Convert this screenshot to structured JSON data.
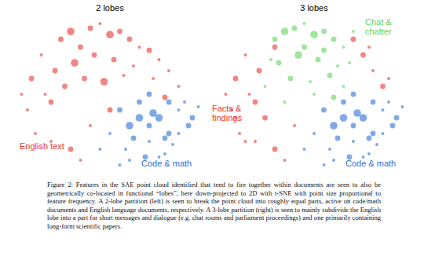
{
  "chart_data": [
    {
      "type": "scatter",
      "title": "2 lobes",
      "xlim": [
        -50,
        50
      ],
      "ylim": [
        -50,
        50
      ],
      "tick_labels": false,
      "series": [
        {
          "name": "English text",
          "color": "#e8342e",
          "x": [
            -40,
            -35,
            -30,
            -42,
            -25,
            -20,
            -15,
            -38,
            -10,
            -5,
            0,
            5,
            10,
            15,
            20,
            25,
            30,
            -28,
            -18,
            -8,
            2,
            12,
            22,
            -33,
            -23,
            -13,
            -3,
            7,
            -45,
            -30,
            -20,
            -10,
            0,
            -15,
            35,
            28
          ],
          "y": [
            10,
            25,
            -5,
            -10,
            35,
            40,
            30,
            -25,
            42,
            45,
            38,
            40,
            35,
            30,
            28,
            22,
            15,
            15,
            20,
            25,
            22,
            18,
            10,
            0,
            5,
            10,
            8,
            12,
            0,
            -30,
            -35,
            -20,
            -10,
            -42,
            5,
            -2
          ],
          "size": [
            2,
            1,
            2,
            1,
            2,
            3,
            2,
            1,
            2,
            1,
            3,
            2,
            2,
            1,
            2,
            1,
            1,
            2,
            3,
            2,
            2,
            1,
            1,
            1,
            2,
            2,
            3,
            1,
            1,
            1,
            2,
            1,
            2,
            1,
            1,
            2
          ]
        },
        {
          "name": "Code & math",
          "color": "#2f6fd6",
          "x": [
            5,
            10,
            15,
            20,
            25,
            30,
            35,
            40,
            8,
            18,
            28,
            38,
            12,
            22,
            32,
            42,
            0,
            10,
            20,
            30,
            15,
            25,
            35,
            5,
            -5,
            20,
            45,
            28
          ],
          "y": [
            -10,
            -20,
            -5,
            -30,
            -15,
            -25,
            -10,
            -20,
            -35,
            -40,
            -38,
            -5,
            -28,
            -12,
            -32,
            -15,
            -25,
            -42,
            -20,
            -5,
            -15,
            -40,
            -25,
            -45,
            -35,
            0,
            -8,
            -28
          ],
          "size": [
            2,
            3,
            2,
            1,
            3,
            2,
            1,
            2,
            1,
            2,
            1,
            1,
            2,
            3,
            1,
            2,
            1,
            1,
            2,
            2,
            3,
            1,
            1,
            1,
            1,
            2,
            1,
            2
          ]
        }
      ]
    },
    {
      "type": "scatter",
      "title": "3 lobes",
      "xlim": [
        -50,
        50
      ],
      "ylim": [
        -50,
        50
      ],
      "tick_labels": false,
      "series": [
        {
          "name": "Facts & findings",
          "color": "#e8342e",
          "x": [
            -40,
            -35,
            -30,
            -42,
            -38,
            -33,
            -28,
            -45,
            -30,
            -20,
            -10,
            -15,
            -25,
            -35,
            25,
            30,
            35,
            20,
            28,
            38,
            -40,
            -20
          ],
          "y": [
            10,
            25,
            -5,
            -10,
            -25,
            0,
            15,
            0,
            -30,
            -35,
            -20,
            -42,
            -15,
            -30,
            25,
            15,
            5,
            35,
            30,
            10,
            -15,
            30
          ],
          "size": [
            2,
            1,
            2,
            1,
            1,
            1,
            2,
            1,
            1,
            2,
            1,
            1,
            2,
            1,
            2,
            1,
            2,
            2,
            1,
            1,
            1,
            2
          ]
        },
        {
          "name": "Chat & chatter",
          "color": "#5fd35a",
          "x": [
            -20,
            -15,
            -10,
            -5,
            0,
            5,
            10,
            15,
            -18,
            -8,
            2,
            12,
            -12,
            -2,
            8,
            18,
            -25,
            -5,
            5,
            15,
            0,
            -15,
            10,
            -22,
            20
          ],
          "y": [
            35,
            40,
            42,
            45,
            38,
            40,
            35,
            30,
            20,
            25,
            22,
            18,
            10,
            8,
            12,
            20,
            5,
            30,
            28,
            5,
            0,
            -5,
            -2,
            22,
            40
          ],
          "size": [
            2,
            3,
            2,
            1,
            3,
            2,
            2,
            1,
            2,
            3,
            2,
            1,
            2,
            1,
            2,
            1,
            1,
            2,
            2,
            1,
            1,
            1,
            2,
            1,
            1
          ]
        },
        {
          "name": "Code & math",
          "color": "#2f6fd6",
          "x": [
            5,
            10,
            15,
            20,
            25,
            30,
            35,
            40,
            8,
            18,
            28,
            38,
            12,
            22,
            32,
            42,
            0,
            10,
            20,
            30,
            15,
            25,
            35,
            5,
            -5,
            20,
            45,
            28
          ],
          "y": [
            -10,
            -20,
            -5,
            -30,
            -15,
            -25,
            -10,
            -20,
            -35,
            -40,
            -38,
            -5,
            -28,
            -12,
            -32,
            -15,
            -25,
            -42,
            -20,
            -5,
            -15,
            -40,
            -25,
            -45,
            -35,
            0,
            -8,
            -28
          ],
          "size": [
            2,
            3,
            2,
            1,
            3,
            2,
            1,
            2,
            1,
            2,
            1,
            1,
            2,
            3,
            1,
            2,
            1,
            1,
            2,
            2,
            3,
            1,
            1,
            1,
            1,
            2,
            1,
            2
          ]
        }
      ]
    }
  ],
  "caption": "Figure 2: Features in the SAE point cloud identified that tend to fire together within documents are seen to also be geometrically co-located in functional “lobes”, here down-projected to 2D with t-SNE with point size proportional to feature frequency. A 2-lobe partition (left) is seen to break the point cloud into roughly equal parts, active on code/math documents and English language documents, respectively. A 3-lobe partition (right) is seen to mainly subdivide the English lobe into a part for short messages and dialogue (e.g. chat rooms and parliament proceedings) and one primarily containing long-form scientific papers."
}
